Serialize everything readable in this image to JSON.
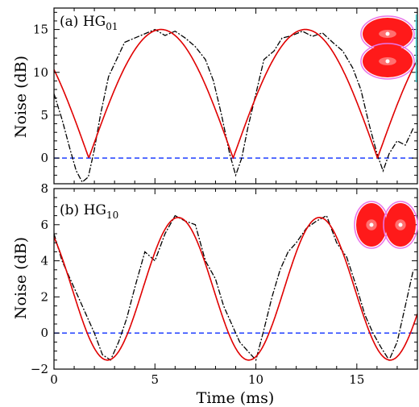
{
  "chart_data": [
    {
      "type": "line",
      "panel_label": "(a)",
      "mode_label": "HG",
      "mode_subscript": "01",
      "xlabel": "Time (ms)",
      "ylabel": "Noise (dB)",
      "xlim": [
        0,
        18
      ],
      "ylim": [
        -3,
        17.5
      ],
      "yticks": [
        0,
        5,
        10,
        15
      ],
      "xticks": [
        0,
        5,
        10,
        15
      ],
      "xtick_labels_shown": false,
      "inset_icon": "hg01-mode-intensity-profile",
      "series": [
        {
          "style": "dash-dot",
          "color": "#000000",
          "x": [
            0,
            0.4,
            0.8,
            1.1,
            1.4,
            1.7,
            2.0,
            2.3,
            2.7,
            3.1,
            3.5,
            4.0,
            4.5,
            5.0,
            5.5,
            6.0,
            6.5,
            7.0,
            7.5,
            7.9,
            8.3,
            8.7,
            9.0,
            9.3,
            9.6,
            10.0,
            10.4,
            10.9,
            11.3,
            11.8,
            12.3,
            12.8,
            13.3,
            13.8,
            14.3,
            14.8,
            15.2,
            15.6,
            16.0,
            16.3,
            16.6,
            17.0,
            17.4,
            17.8
          ],
          "y": [
            7.5,
            4.5,
            1.0,
            -1.5,
            -2.8,
            -2.2,
            1.0,
            5.0,
            9.5,
            11.5,
            13.5,
            14.0,
            14.5,
            15.0,
            14.3,
            14.8,
            14.0,
            13.0,
            11.5,
            9.0,
            5.0,
            0.5,
            -2.0,
            0.0,
            3.5,
            7.5,
            11.5,
            12.5,
            14.0,
            14.3,
            14.8,
            14.2,
            14.6,
            13.5,
            12.5,
            10.5,
            8.0,
            4.0,
            0.5,
            -1.5,
            0.5,
            2.0,
            1.5,
            3.5
          ]
        },
        {
          "style": "solid",
          "color": "#e00000",
          "model": "15 |cos(pi (t - 5.3) / 7.15)| with -3 dB floor"
        },
        {
          "style": "dashed",
          "color": "#1f3fff",
          "y_const": 0
        }
      ]
    },
    {
      "type": "line",
      "panel_label": "(b)",
      "mode_label": "HG",
      "mode_subscript": "10",
      "xlabel": "Time (ms)",
      "ylabel": "Noise (dB)",
      "xlim": [
        0,
        18
      ],
      "ylim": [
        -2,
        8
      ],
      "yticks": [
        -2,
        0,
        2,
        4,
        6,
        8
      ],
      "xticks": [
        0,
        5,
        10,
        15
      ],
      "inset_icon": "hg10-mode-intensity-profile",
      "series": [
        {
          "style": "dash-dot",
          "color": "#000000",
          "x": [
            0,
            0.4,
            0.8,
            1.2,
            1.6,
            2.0,
            2.4,
            2.8,
            3.2,
            3.6,
            4.0,
            4.5,
            5.0,
            5.5,
            6.0,
            6.5,
            7.0,
            7.5,
            8.0,
            8.4,
            8.8,
            9.2,
            9.6,
            10.0,
            10.4,
            10.8,
            11.2,
            11.6,
            12.0,
            12.5,
            13.0,
            13.5,
            14.0,
            14.5,
            15.0,
            15.4,
            15.8,
            16.2,
            16.6,
            17.0,
            17.4,
            17.8
          ],
          "y": [
            5.5,
            4.0,
            3.0,
            2.0,
            1.0,
            0.0,
            -1.2,
            -1.5,
            -0.5,
            0.8,
            2.5,
            4.5,
            4.0,
            5.5,
            6.5,
            6.2,
            6.0,
            4.0,
            3.0,
            1.5,
            0.5,
            -0.5,
            -1.0,
            -1.5,
            0.2,
            2.0,
            3.5,
            4.5,
            5.0,
            5.8,
            6.2,
            6.5,
            5.0,
            4.2,
            2.5,
            1.0,
            0.0,
            -0.8,
            -1.5,
            -0.5,
            1.5,
            3.5
          ]
        },
        {
          "style": "solid",
          "color": "#e00000",
          "model": "2.45 + 3.95 cos(2 pi (t - 6.15) / 7.0)"
        },
        {
          "style": "dashed",
          "color": "#1f3fff",
          "y_const": 0
        }
      ]
    }
  ]
}
